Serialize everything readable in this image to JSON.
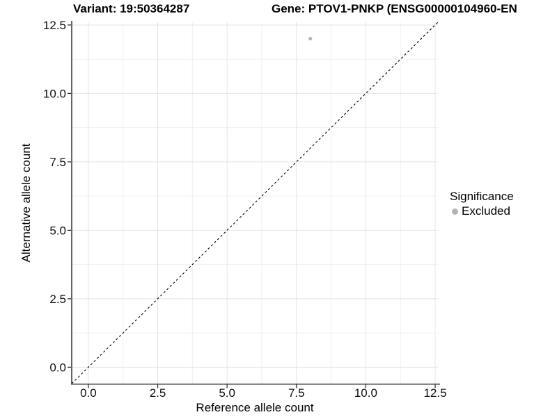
{
  "title": {
    "variant": "Variant: 19:50364287",
    "gene": "Gene: PTOV1-PNKP (ENSG00000104960-EN"
  },
  "chart_data": {
    "type": "scatter",
    "title": "Variant: 19:50364287  |  Gene: PTOV1-PNKP (ENSG00000104960-EN",
    "xlabel": "Reference allele count",
    "ylabel": "Alternative allele count",
    "xlim": [
      -0.6,
      12.6
    ],
    "ylim": [
      -0.6,
      12.6
    ],
    "x_ticks": [
      0,
      2.5,
      5,
      7.5,
      10,
      12.5
    ],
    "y_ticks": [
      0,
      2.5,
      5,
      7.5,
      10,
      12.5
    ],
    "x_tick_labels": [
      "0.0",
      "2.5",
      "5.0",
      "7.5",
      "10.0",
      "12.5"
    ],
    "y_tick_labels": [
      "0.0",
      "2.5",
      "5.0",
      "7.5",
      "10.0",
      "12.5"
    ],
    "minor_gridlines": [
      1.25,
      3.75,
      6.25,
      8.75,
      11.25
    ],
    "grid": true,
    "series": [
      {
        "name": "Excluded",
        "color": "#b4b4b4",
        "points": [
          {
            "x": 8,
            "y": 12
          }
        ]
      }
    ],
    "reference_line": {
      "type": "identity",
      "style": "dashed",
      "from": [
        -0.6,
        -0.6
      ],
      "to": [
        12.6,
        12.6
      ],
      "color": "#000000"
    },
    "legend": {
      "title": "Significance",
      "position": "right",
      "items": [
        {
          "label": "Excluded",
          "color": "#b4b4b4",
          "marker": "circle"
        }
      ]
    }
  },
  "colors": {
    "background": "#ffffff",
    "grid_major": "#e4e4e4",
    "grid_minor": "#f0f0f0",
    "axis_line": "#222222",
    "tick_text": "#111111",
    "point": "#b4b4b4",
    "dashed_line": "#000000"
  }
}
